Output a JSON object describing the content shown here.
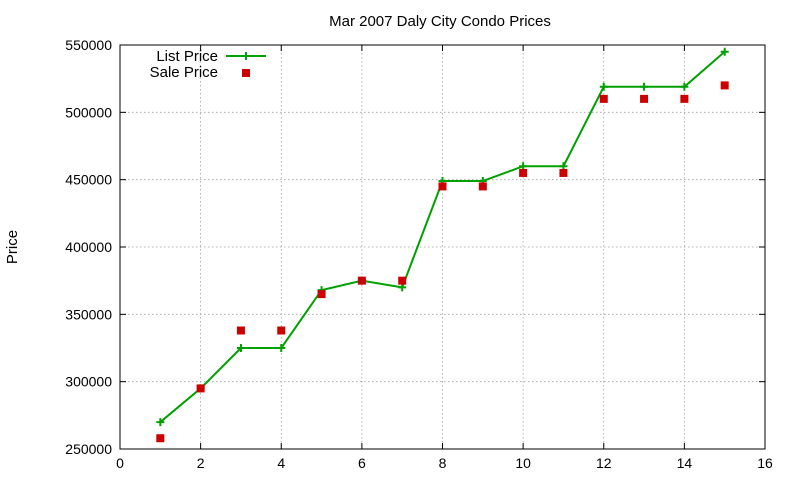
{
  "chart_data": {
    "type": "line",
    "title": "Mar 2007 Daly City Condo Prices",
    "xlabel": "",
    "ylabel": "Price",
    "xlim": [
      0,
      16
    ],
    "ylim": [
      250000,
      550000
    ],
    "xticks": [
      "0",
      "2",
      "4",
      "6",
      "8",
      "10",
      "12",
      "14",
      "16"
    ],
    "yticks": [
      "250000",
      "300000",
      "350000",
      "400000",
      "450000",
      "500000",
      "550000"
    ],
    "grid": true,
    "legend_position": "top-left",
    "series": [
      {
        "name": "List Price",
        "style": "line-plus",
        "color": "#00a000",
        "x": [
          1,
          2,
          3,
          4,
          5,
          6,
          7,
          8,
          9,
          10,
          11,
          12,
          13,
          14,
          15
        ],
        "y": [
          270000,
          295000,
          325000,
          325000,
          368000,
          375000,
          370000,
          449000,
          449000,
          460000,
          460000,
          519000,
          519000,
          519000,
          545000
        ]
      },
      {
        "name": "Sale Price",
        "style": "square",
        "color": "#cc0000",
        "x": [
          1,
          2,
          3,
          4,
          5,
          6,
          7,
          8,
          9,
          10,
          11,
          12,
          13,
          14,
          15
        ],
        "y": [
          258000,
          295000,
          338000,
          338000,
          365000,
          375000,
          375000,
          445000,
          445000,
          455000,
          455000,
          510000,
          510000,
          510000,
          520000
        ]
      }
    ]
  }
}
